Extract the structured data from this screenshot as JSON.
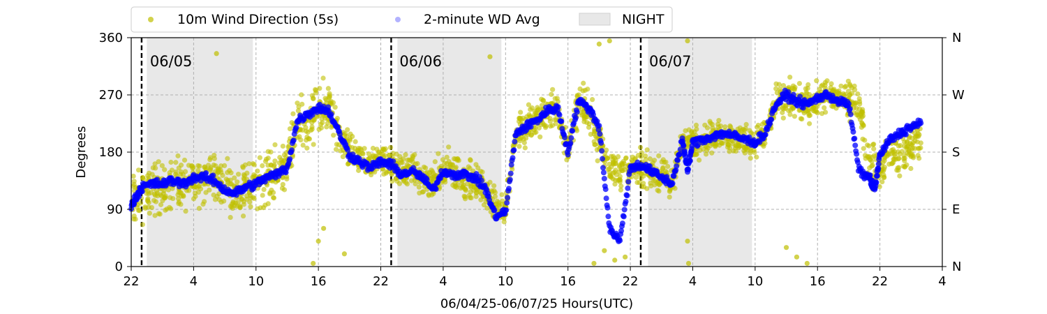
{
  "chart_data": {
    "type": "scatter",
    "title": "",
    "xlabel": "06/04/25-06/07/25  Hours(UTC)",
    "ylabel": "Degrees",
    "x_unit": "hours since 06/04/25 22:00 UTC",
    "xlim": [
      0,
      78
    ],
    "ylim": [
      0,
      360
    ],
    "x_tick_values": [
      0,
      6,
      12,
      18,
      24,
      30,
      36,
      42,
      48,
      54,
      60,
      66,
      72,
      78
    ],
    "x_tick_labels": [
      "22",
      "4",
      "10",
      "16",
      "22",
      "4",
      "10",
      "16",
      "22",
      "4",
      "10",
      "16",
      "22",
      "4"
    ],
    "y_tick_values": [
      0,
      90,
      180,
      270,
      360
    ],
    "y_tick_labels": [
      "0",
      "90",
      "180",
      "270",
      "360"
    ],
    "y2_tick_labels": [
      "N",
      "E",
      "S",
      "W",
      "N"
    ],
    "grid": true,
    "legend_placement": "top-center, above plot",
    "legend": [
      {
        "label": "10m Wind Direction (5s)",
        "kind": "marker",
        "color": "#bfbf00"
      },
      {
        "label": "2-minute WD Avg",
        "kind": "marker",
        "color": "#0000ff"
      },
      {
        "label": "NIGHT",
        "kind": "patch",
        "color": "#e8e8e8"
      }
    ],
    "night_spans": [
      [
        1.5,
        11.7
      ],
      [
        25.6,
        35.6
      ],
      [
        49.7,
        59.7
      ]
    ],
    "day_markers": [
      {
        "x": 1.0,
        "label": "06/05"
      },
      {
        "x": 25.0,
        "label": "06/06"
      },
      {
        "x": 49.0,
        "label": "06/07"
      }
    ],
    "series": [
      {
        "name": "10m Wind Direction (5s)",
        "color": "#bfbf00",
        "x": [
          0,
          1,
          2,
          3,
          4,
          5,
          6,
          7,
          8,
          9,
          10,
          11,
          12,
          13,
          14,
          15,
          16,
          17,
          18,
          19,
          20,
          21,
          22,
          23,
          24,
          25,
          26,
          27,
          28,
          29,
          30,
          31,
          32,
          33,
          34,
          35,
          36,
          37,
          38,
          39,
          40,
          41,
          42,
          43,
          44,
          45,
          46,
          47,
          48,
          49,
          50,
          51,
          52,
          53,
          54,
          55,
          56,
          57,
          58,
          59,
          60,
          61,
          62,
          63,
          64,
          65,
          66,
          67,
          68,
          69,
          70,
          71,
          72,
          73,
          74,
          75,
          76
        ],
        "center": [
          100,
          110,
          120,
          125,
          130,
          130,
          135,
          140,
          140,
          130,
          120,
          125,
          130,
          140,
          150,
          160,
          225,
          230,
          240,
          250,
          200,
          180,
          165,
          160,
          170,
          160,
          150,
          150,
          140,
          130,
          150,
          150,
          140,
          130,
          120,
          100,
          95,
          210,
          220,
          230,
          240,
          250,
          180,
          260,
          240,
          200,
          160,
          150,
          150,
          155,
          150,
          140,
          130,
          200,
          195,
          200,
          205,
          210,
          200,
          200,
          195,
          210,
          255,
          265,
          260,
          255,
          260,
          270,
          265,
          260,
          260,
          160,
          150,
          180,
          170,
          190,
          200
        ],
        "spread": [
          60,
          60,
          60,
          60,
          55,
          55,
          55,
          55,
          55,
          55,
          55,
          55,
          55,
          60,
          55,
          50,
          60,
          60,
          60,
          60,
          45,
          40,
          35,
          35,
          35,
          40,
          40,
          40,
          40,
          40,
          45,
          45,
          45,
          45,
          45,
          40,
          40,
          45,
          45,
          45,
          45,
          45,
          45,
          45,
          50,
          45,
          40,
          40,
          40,
          40,
          40,
          40,
          40,
          35,
          35,
          35,
          35,
          35,
          35,
          35,
          35,
          35,
          40,
          40,
          40,
          40,
          40,
          40,
          40,
          40,
          40,
          50,
          50,
          50,
          50,
          50,
          50
        ],
        "outliers": [
          [
            8.2,
            335
          ],
          [
            17.5,
            5
          ],
          [
            18.0,
            40
          ],
          [
            18.5,
            60
          ],
          [
            20.5,
            20
          ],
          [
            34.5,
            330
          ],
          [
            44.5,
            5
          ],
          [
            45.5,
            25
          ],
          [
            46.5,
            10
          ],
          [
            47.5,
            15
          ],
          [
            53.5,
            355
          ],
          [
            53.5,
            40
          ],
          [
            53.6,
            5
          ],
          [
            63.0,
            30
          ],
          [
            64.0,
            15
          ],
          [
            65.0,
            5
          ],
          [
            45.0,
            350
          ],
          [
            46.0,
            355
          ]
        ]
      },
      {
        "name": "2-minute WD Avg",
        "color": "#0000ff",
        "x": [
          0,
          0.5,
          1,
          2,
          3,
          4,
          5,
          6,
          7,
          8,
          9,
          10,
          11,
          12,
          13,
          14,
          15,
          16,
          17,
          18,
          19,
          20,
          21,
          22,
          23,
          24,
          25,
          26,
          27,
          28,
          29,
          30,
          31,
          32,
          33,
          34,
          35,
          36,
          37,
          38,
          39,
          40,
          41,
          42,
          43,
          44,
          45,
          46,
          47,
          48,
          49,
          50,
          51,
          52,
          53,
          53.5,
          54,
          55,
          56,
          57,
          58,
          59,
          60,
          61,
          62,
          63,
          64,
          65,
          66,
          67,
          68,
          69,
          70,
          71,
          71.5,
          72,
          73,
          74,
          75,
          76
        ],
        "y": [
          95,
          110,
          125,
          130,
          130,
          135,
          130,
          140,
          140,
          135,
          120,
          115,
          125,
          130,
          140,
          145,
          155,
          230,
          240,
          250,
          245,
          210,
          175,
          165,
          155,
          165,
          160,
          145,
          150,
          140,
          120,
          150,
          145,
          145,
          140,
          125,
          80,
          85,
          210,
          220,
          230,
          245,
          250,
          180,
          260,
          250,
          220,
          60,
          40,
          155,
          160,
          150,
          140,
          130,
          200,
          150,
          195,
          200,
          205,
          210,
          205,
          200,
          195,
          210,
          255,
          270,
          260,
          255,
          265,
          270,
          260,
          255,
          150,
          140,
          120,
          175,
          200,
          210,
          220,
          225
        ]
      }
    ]
  }
}
